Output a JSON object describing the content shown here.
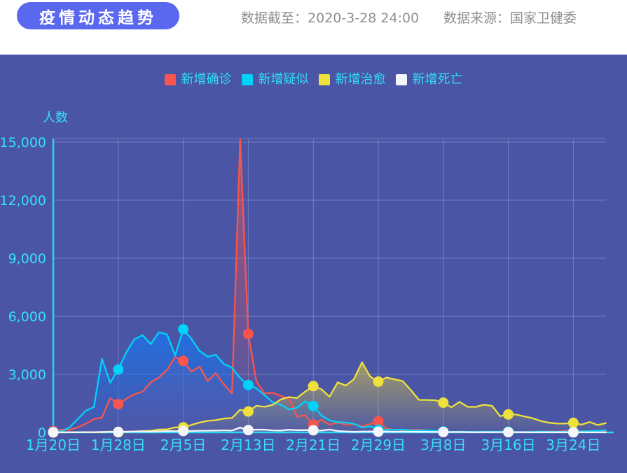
{
  "header": {
    "title": "疫情动态趋势",
    "asof_label": "数据截至：",
    "asof_value": "2020-3-28 24:00",
    "source_label": "数据来源：",
    "source_value": "国家卫健委"
  },
  "colors": {
    "panel_bg": "#4A55A6",
    "title_pill": "#5A67EF",
    "axis_line": "#2BD5F5",
    "tick_text": "#35E0FA",
    "legend_text": "#2EDEF8",
    "grid_line": "rgba(205,218,255,0.30)"
  },
  "chart_data": {
    "type": "line",
    "title": "疫情动态趋势",
    "xlabel": "",
    "ylabel": "人数",
    "ylim": [
      0,
      15000
    ],
    "grid": true,
    "legend_position": "top",
    "y_ticks": [
      0,
      3000,
      6000,
      9000,
      12000,
      15000
    ],
    "y_tick_labels": [
      "0",
      "3,000",
      "6,000",
      "9,000",
      "12,000",
      "15,000"
    ],
    "x_tick_indices": [
      0,
      8,
      16,
      24,
      32,
      40,
      48,
      56,
      64
    ],
    "x_tick_labels": [
      "1月20日",
      "1月28日",
      "2月5日",
      "2月13日",
      "2月21日",
      "2月29日",
      "3月8日",
      "3月16日",
      "3月24日"
    ],
    "n_points": 69,
    "series": [
      {
        "key": "confirmed",
        "name": "新增确诊",
        "color": "#F8554E",
        "fill_color": "#F8554E",
        "fill_opacity_top": 0.5,
        "fill_opacity_bottom": 0.03,
        "values": [
          77,
          149,
          131,
          259,
          444,
          688,
          769,
          1771,
          1459,
          1737,
          1982,
          2102,
          2590,
          2829,
          3235,
          3887,
          3694,
          3143,
          3399,
          2656,
          3062,
          2478,
          2015,
          15152,
          5090,
          2641,
          2009,
          2048,
          1886,
          1749,
          820,
          889,
          397,
          648,
          409,
          508,
          406,
          433,
          327,
          427,
          573,
          202,
          125,
          119,
          139,
          143,
          99,
          44,
          40,
          19,
          24,
          15,
          8,
          11,
          20,
          16,
          21,
          13,
          34,
          39,
          41,
          46,
          39,
          78,
          47,
          67,
          55,
          54,
          45
        ]
      },
      {
        "key": "suspected",
        "name": "新增疑似",
        "color": "#00D2F8",
        "fill_color": "#1E72E8",
        "fill_opacity_top": 0.88,
        "fill_opacity_bottom": 0.06,
        "values": [
          27,
          53,
          257,
          680,
          1118,
          1309,
          3806,
          2567,
          3248,
          4148,
          4812,
          5019,
          4562,
          5173,
          5072,
          3971,
          5328,
          4833,
          4214,
          3916,
          4008,
          3536,
          3342,
          2807,
          2450,
          2277,
          1918,
          1563,
          1432,
          1185,
          1277,
          1614,
          1361,
          882,
          620,
          530,
          508,
          452,
          248,
          318,
          132,
          141,
          129,
          143,
          102,
          102,
          99,
          84,
          42,
          31,
          33,
          33,
          26,
          40,
          36,
          41,
          35,
          21,
          23,
          31,
          39,
          35,
          29,
          35,
          33,
          58,
          69,
          80,
          113
        ]
      },
      {
        "key": "cured",
        "name": "新增治愈",
        "color": "#EFE13C",
        "fill_color": "#E8D43A",
        "fill_opacity_top": 0.55,
        "fill_opacity_bottom": 0.04,
        "values": [
          0,
          0,
          5,
          6,
          3,
          11,
          9,
          43,
          9,
          21,
          47,
          72,
          85,
          147,
          157,
          262,
          261,
          387,
          510,
          600,
          632,
          716,
          744,
          1171,
          1081,
          1373,
          1323,
          1425,
          1701,
          1824,
          1779,
          2109,
          2393,
          2230,
          1846,
          2589,
          2422,
          2750,
          3622,
          2885,
          2623,
          2837,
          2742,
          2652,
          2189,
          1681,
          1678,
          1661,
          1535,
          1297,
          1578,
          1318,
          1321,
          1430,
          1373,
          838,
          930,
          923,
          819,
          730,
          590,
          504,
          459,
          456,
          491,
          401,
          537,
          383,
          477
        ]
      },
      {
        "key": "deaths",
        "name": "新增死亡",
        "color": "#F4F5FA",
        "fill_color": "#FFFFFF",
        "fill_opacity_top": 0.22,
        "fill_opacity_bottom": 0.02,
        "values": [
          2,
          3,
          8,
          8,
          16,
          15,
          24,
          26,
          26,
          38,
          43,
          46,
          45,
          57,
          64,
          65,
          73,
          73,
          86,
          89,
          97,
          108,
          97,
          254,
          121,
          143,
          142,
          105,
          98,
          136,
          114,
          118,
          109,
          97,
          150,
          71,
          52,
          29,
          44,
          47,
          35,
          42,
          31,
          38,
          31,
          30,
          28,
          27,
          22,
          17,
          22,
          11,
          7,
          13,
          10,
          14,
          13,
          11,
          8,
          3,
          7,
          6,
          9,
          7,
          4,
          6,
          5,
          3,
          5
        ]
      }
    ]
  }
}
